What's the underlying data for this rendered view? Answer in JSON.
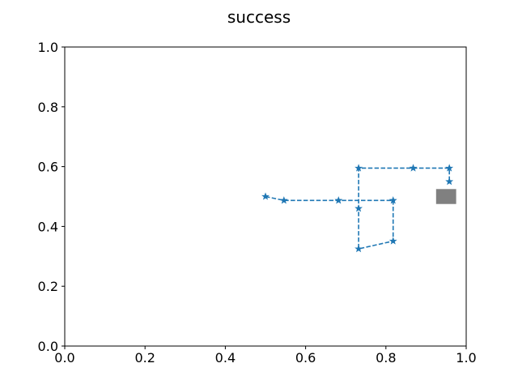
{
  "chart_data": {
    "type": "line",
    "title": "success",
    "xlabel": "",
    "ylabel": "",
    "xlim": [
      0.0,
      1.0
    ],
    "ylim": [
      0.0,
      1.0
    ],
    "xticks": [
      "0.0",
      "0.2",
      "0.4",
      "0.6",
      "0.8",
      "1.0"
    ],
    "yticks": [
      "0.0",
      "0.2",
      "0.4",
      "0.6",
      "0.8",
      "1.0"
    ],
    "grid": false,
    "series": [
      {
        "line_style": "dashed",
        "marker": "star",
        "color": "#1f77b4",
        "points": [
          {
            "x": 0.5,
            "y": 0.5
          },
          {
            "x": 0.546,
            "y": 0.487
          },
          {
            "x": 0.682,
            "y": 0.487
          },
          {
            "x": 0.818,
            "y": 0.487
          },
          {
            "x": 0.818,
            "y": 0.351
          },
          {
            "x": 0.732,
            "y": 0.325
          },
          {
            "x": 0.732,
            "y": 0.46
          },
          {
            "x": 0.732,
            "y": 0.595
          },
          {
            "x": 0.868,
            "y": 0.595
          },
          {
            "x": 0.958,
            "y": 0.595
          },
          {
            "x": 0.958,
            "y": 0.55
          }
        ]
      }
    ],
    "target": {
      "shape": "rectangle",
      "color": "#808080",
      "x_range": [
        0.925,
        0.975
      ],
      "y_range": [
        0.475,
        0.525
      ]
    }
  }
}
